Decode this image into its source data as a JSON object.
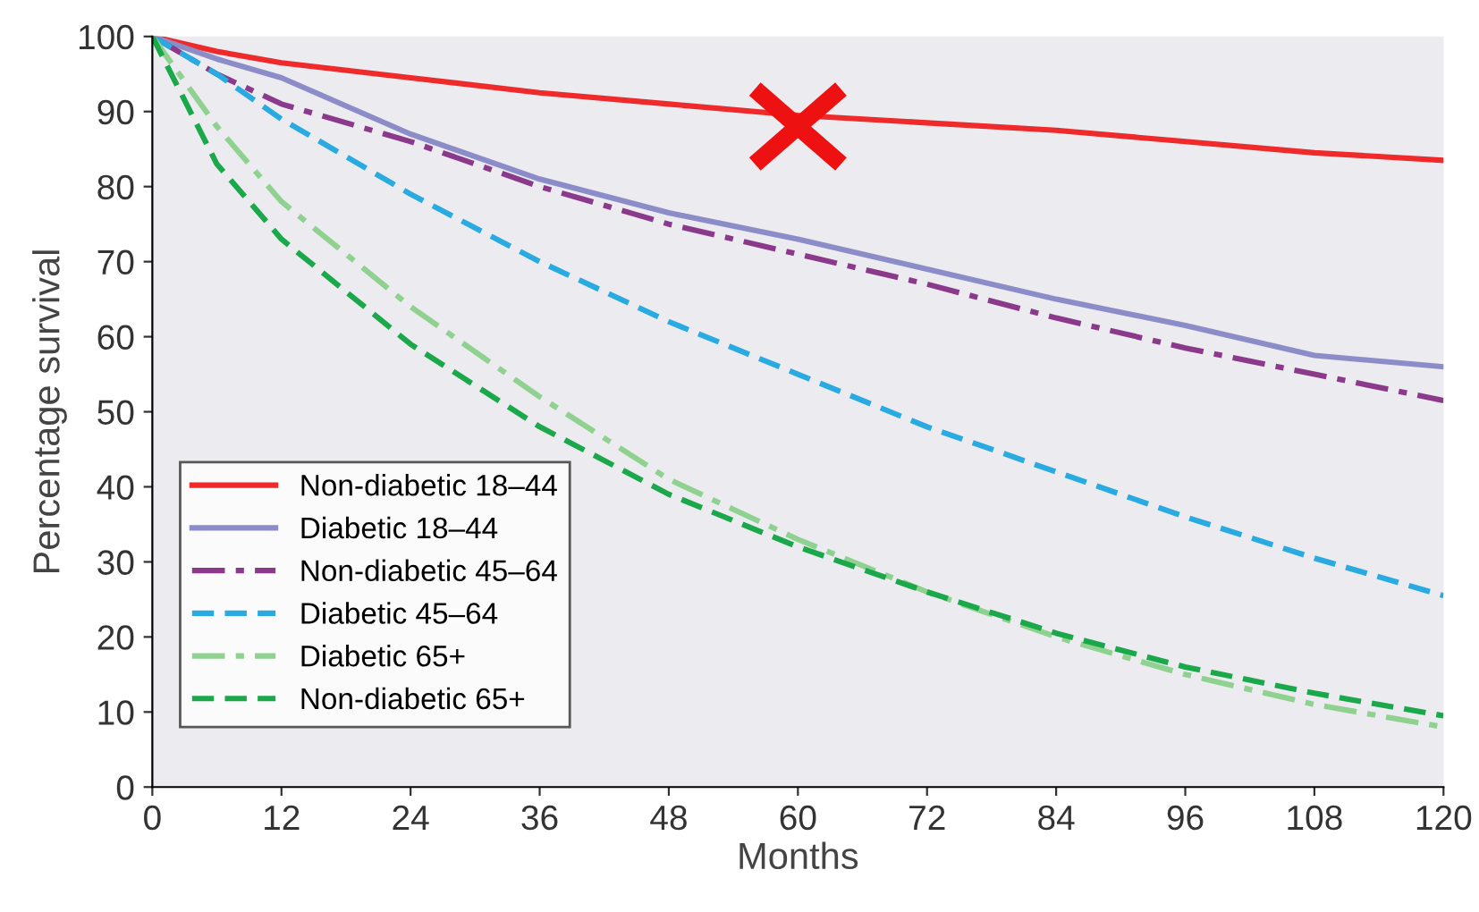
{
  "chart_data": {
    "type": "line",
    "xlabel": "Months",
    "ylabel": "Percentage survival",
    "x": [
      0,
      6,
      12,
      24,
      36,
      48,
      60,
      72,
      84,
      96,
      108,
      120
    ],
    "series": [
      {
        "name": "Non-diabetic 18–44",
        "color": "#ee2a2a",
        "line_style": "solid",
        "values": [
          100,
          98,
          96.5,
          94.5,
          92.5,
          91,
          89.5,
          88.5,
          87.5,
          86,
          84.5,
          83.5
        ]
      },
      {
        "name": "Diabetic 18–44",
        "color": "#8c8cc8",
        "line_style": "solid",
        "values": [
          100,
          97,
          94.5,
          87,
          81,
          76.5,
          73,
          69,
          65,
          61.5,
          57.5,
          56
        ]
      },
      {
        "name": "Non-diabetic 45–64",
        "color": "#8b3a8b",
        "line_style": "dashdot",
        "values": [
          100,
          95,
          91,
          86,
          80,
          75,
          71,
          67,
          62.5,
          58.5,
          55,
          51.5
        ]
      },
      {
        "name": "Diabetic 45–64",
        "color": "#29aae1",
        "line_style": "dashed",
        "values": [
          100,
          95,
          89,
          79,
          70,
          62,
          55,
          48,
          42,
          36,
          30.5,
          25.5
        ]
      },
      {
        "name": "Diabetic 65+",
        "color": "#8fd18f",
        "line_style": "dashdot",
        "values": [
          100,
          88,
          78,
          64,
          52,
          41,
          33,
          26,
          20,
          15,
          11,
          8
        ]
      },
      {
        "name": "Non-diabetic 65+",
        "color": "#1aa84a",
        "line_style": "dashed",
        "values": [
          100,
          83,
          73,
          59,
          48,
          39,
          32,
          26,
          20.5,
          16,
          12.5,
          9.5
        ]
      }
    ],
    "xlim": [
      0,
      120
    ],
    "ylim": [
      0,
      100
    ],
    "xticks": [
      0,
      12,
      24,
      36,
      48,
      60,
      72,
      84,
      96,
      108,
      120
    ],
    "yticks": [
      0,
      10,
      20,
      30,
      40,
      50,
      60,
      70,
      80,
      90,
      100
    ],
    "grid": false,
    "legend": "bottom left",
    "marker": "none"
  }
}
